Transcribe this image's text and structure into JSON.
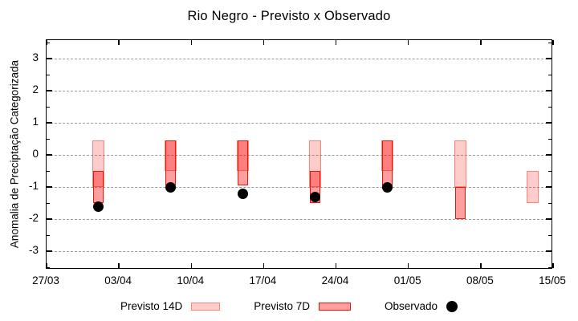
{
  "title": "Rio Negro - Previsto x Observado",
  "legend": {
    "items": [
      {
        "label": "Previsto 14D",
        "swatch": "light-bar"
      },
      {
        "label": "Previsto 7D",
        "swatch": "dark-bar"
      },
      {
        "label": "Observado",
        "swatch": "black-dot"
      }
    ]
  },
  "colors": {
    "previsto_14d_fill": "rgba(255,0,0,0.20)",
    "previsto_14d_border": "rgba(255,70,50,0.55)",
    "previsto_7d_fill": "rgba(255,0,0,0.38)",
    "previsto_7d_border": "#ee1404",
    "observado": "#000000",
    "gridline": "#999999",
    "axis": "#000000"
  },
  "chart_data": {
    "type": "bar",
    "subtype": "range-bars-with-scatter-overlay",
    "title": "Rio Negro - Previsto x Observado",
    "xlabel": "",
    "ylabel": "Anomalia de Preciptação Categorizada",
    "ylim": [
      -3.575,
      3.575
    ],
    "y_ticks": [
      3,
      2,
      1,
      0,
      -1,
      -2,
      -3
    ],
    "y_minor_tick_step": 0.5,
    "x_range_days": 49,
    "x_start_label": "27/03",
    "x_tick_labels": [
      "27/03",
      "03/04",
      "10/04",
      "17/04",
      "24/04",
      "01/05",
      "08/05",
      "15/05"
    ],
    "grid": "horizontal-dashed",
    "legend_position": "bottom-center",
    "series": [
      {
        "name": "Previsto 14D",
        "type": "range-bar",
        "style": "light",
        "points": [
          {
            "x": "01/04",
            "from": 0.45,
            "to": -1.0
          },
          {
            "x": "08/04",
            "from": 0.45,
            "to": -0.5
          },
          {
            "x": "15/04",
            "from": 0.45,
            "to": -0.5
          },
          {
            "x": "22/04",
            "from": 0.45,
            "to": -1.0
          },
          {
            "x": "29/04",
            "from": 0.45,
            "to": -0.5
          },
          {
            "x": "06/05",
            "from": 0.45,
            "to": -1.0
          },
          {
            "x": "13/05",
            "from": -0.5,
            "to": -1.5
          }
        ]
      },
      {
        "name": "Previsto 7D",
        "type": "range-bar",
        "style": "dark",
        "points": [
          {
            "x": "01/04",
            "from": -0.5,
            "to": -1.5
          },
          {
            "x": "08/04",
            "from": 0.45,
            "to": -0.95
          },
          {
            "x": "15/04",
            "from": 0.45,
            "to": -0.95
          },
          {
            "x": "22/04",
            "from": -0.5,
            "to": -1.5
          },
          {
            "x": "29/04",
            "from": 0.45,
            "to": -1.05
          },
          {
            "x": "06/05",
            "from": -1.0,
            "to": -2.0
          }
        ]
      },
      {
        "name": "Observado",
        "type": "scatter",
        "points": [
          {
            "x": "01/04",
            "y": -1.6
          },
          {
            "x": "08/04",
            "y": -1.0
          },
          {
            "x": "15/04",
            "y": -1.2
          },
          {
            "x": "22/04",
            "y": -1.3
          },
          {
            "x": "29/04",
            "y": -1.0
          }
        ]
      }
    ]
  }
}
